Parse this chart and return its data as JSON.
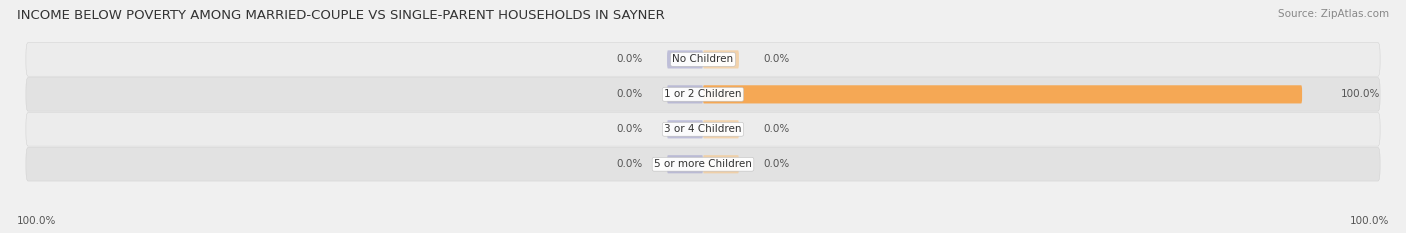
{
  "title": "INCOME BELOW POVERTY AMONG MARRIED-COUPLE VS SINGLE-PARENT HOUSEHOLDS IN SAYNER",
  "source": "Source: ZipAtlas.com",
  "categories": [
    "No Children",
    "1 or 2 Children",
    "3 or 4 Children",
    "5 or more Children"
  ],
  "married_values": [
    0.0,
    0.0,
    0.0,
    0.0
  ],
  "single_values": [
    0.0,
    100.0,
    0.0,
    0.0
  ],
  "married_color": "#a0a0cc",
  "single_color": "#f5a855",
  "single_color_light": "#f5c890",
  "row_bg_even": "#ececec",
  "row_bg_odd": "#e2e2e2",
  "label_color": "#555555",
  "title_fontsize": 9.5,
  "source_fontsize": 7.5,
  "category_fontsize": 7.5,
  "value_fontsize": 7.5,
  "legend_fontsize": 8,
  "bar_height": 0.52,
  "fig_bg_color": "#f0f0f0"
}
